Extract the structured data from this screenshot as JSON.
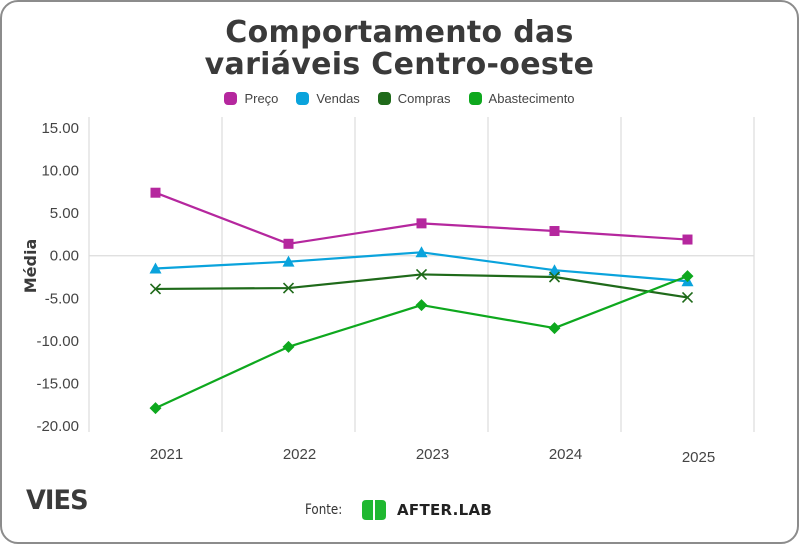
{
  "chart_data": {
    "type": "line",
    "title": "Comportamento das variáveis Centro-oeste",
    "title_lines": [
      "Comportamento das",
      "variáveis Centro-oeste"
    ],
    "xlabel": "",
    "ylabel": "Média",
    "categories": [
      "2021",
      "2022",
      "2023",
      "2024",
      "2025"
    ],
    "ylim": [
      -20,
      15
    ],
    "yticks": [
      15,
      10,
      5,
      0,
      -5,
      -10,
      -15,
      -20
    ],
    "ytick_labels": [
      "15.00",
      "10.00",
      "5.00",
      "0.00",
      "-5.00",
      "-10.00",
      "-15.00",
      "-20.00"
    ],
    "grid": "vertical band lines and zero line",
    "legend_position": "top-center",
    "series": [
      {
        "name": "Preço",
        "color": "#b5279e",
        "marker": "square",
        "values": [
          7.4,
          1.4,
          3.8,
          2.9,
          1.9
        ]
      },
      {
        "name": "Vendas",
        "color": "#0aa3dc",
        "marker": "triangle",
        "values": [
          -1.5,
          -0.7,
          0.4,
          -1.7,
          -3.0
        ]
      },
      {
        "name": "Compras",
        "color": "#1f6a1a",
        "marker": "x",
        "values": [
          -3.9,
          -3.8,
          -2.2,
          -2.5,
          -4.9
        ]
      },
      {
        "name": "Abastecimento",
        "color": "#0ea81e",
        "marker": "diamond",
        "values": [
          -17.9,
          -10.7,
          -5.8,
          -8.5,
          -2.4
        ]
      }
    ]
  },
  "footer": {
    "brand": "VIES",
    "source_label": "Fonte:",
    "source_name": "AFTER.LAB",
    "source_icon": "afterlab-logo-icon"
  }
}
